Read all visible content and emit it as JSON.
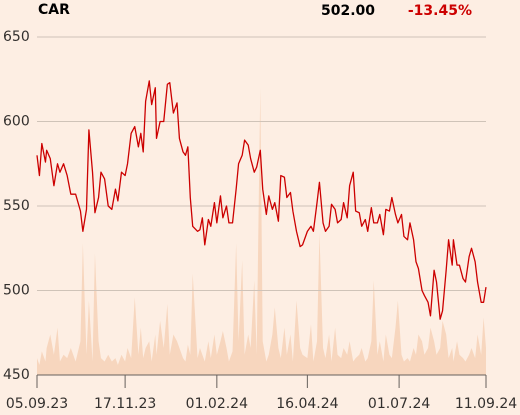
{
  "chart_data": {
    "type": "line",
    "header": {
      "symbol": "CAR",
      "price": "502.00",
      "change": "-13.45%"
    },
    "x": [
      "2023-09-05",
      "2023-09-07",
      "2023-09-09",
      "2023-09-12",
      "2023-09-13",
      "2023-09-16",
      "2023-09-19",
      "2023-09-22",
      "2023-09-24",
      "2023-09-27",
      "2023-09-30",
      "2023-10-03",
      "2023-10-07",
      "2023-10-11",
      "2023-10-13",
      "2023-10-16",
      "2023-10-18",
      "2023-10-21",
      "2023-10-23",
      "2023-10-26",
      "2023-10-28",
      "2023-10-31",
      "2023-11-03",
      "2023-11-06",
      "2023-11-09",
      "2023-11-11",
      "2023-11-14",
      "2023-11-17",
      "2023-11-19",
      "2023-11-22",
      "2023-11-25",
      "2023-11-28",
      "2023-11-30",
      "2023-12-02",
      "2023-12-04",
      "2023-12-07",
      "2023-12-09",
      "2023-12-12",
      "2023-12-13",
      "2023-12-16",
      "2023-12-19",
      "2023-12-22",
      "2023-12-24",
      "2023-12-27",
      "2023-12-30",
      "2024-01-01",
      "2024-01-04",
      "2024-01-06",
      "2024-01-08",
      "2024-01-10",
      "2024-01-12",
      "2024-01-16",
      "2024-01-18",
      "2024-01-20",
      "2024-01-22",
      "2024-01-25",
      "2024-01-27",
      "2024-01-30",
      "2024-02-01",
      "2024-02-04",
      "2024-02-06",
      "2024-02-09",
      "2024-02-11",
      "2024-02-14",
      "2024-02-17",
      "2024-02-19",
      "2024-02-22",
      "2024-02-24",
      "2024-02-27",
      "2024-02-29",
      "2024-03-03",
      "2024-03-05",
      "2024-03-08",
      "2024-03-10",
      "2024-03-13",
      "2024-03-15",
      "2024-03-18",
      "2024-03-20",
      "2024-03-23",
      "2024-03-25",
      "2024-03-28",
      "2024-03-30",
      "2024-04-02",
      "2024-04-04",
      "2024-04-07",
      "2024-04-10",
      "2024-04-12",
      "2024-04-16",
      "2024-04-19",
      "2024-04-21",
      "2024-04-24",
      "2024-04-26",
      "2024-04-29",
      "2024-05-01",
      "2024-05-04",
      "2024-05-06",
      "2024-05-09",
      "2024-05-11",
      "2024-05-14",
      "2024-05-16",
      "2024-05-19",
      "2024-05-21",
      "2024-05-24",
      "2024-05-26",
      "2024-05-29",
      "2024-05-31",
      "2024-06-03",
      "2024-06-05",
      "2024-06-08",
      "2024-06-10",
      "2024-06-13",
      "2024-06-15",
      "2024-06-18",
      "2024-06-20",
      "2024-06-23",
      "2024-06-25",
      "2024-06-28",
      "2024-06-30",
      "2024-07-03",
      "2024-07-05",
      "2024-07-08",
      "2024-07-10",
      "2024-07-13",
      "2024-07-15",
      "2024-07-17",
      "2024-07-20",
      "2024-07-22",
      "2024-07-25",
      "2024-07-27",
      "2024-07-30",
      "2024-08-01",
      "2024-08-04",
      "2024-08-06",
      "2024-08-09",
      "2024-08-11",
      "2024-08-14",
      "2024-08-15",
      "2024-08-18",
      "2024-08-20",
      "2024-08-23",
      "2024-08-25",
      "2024-08-28",
      "2024-08-30",
      "2024-09-02",
      "2024-09-04",
      "2024-09-07",
      "2024-09-09",
      "2024-09-11"
    ],
    "series": [
      {
        "color": "#cc0000",
        "values": [
          580,
          568,
          587,
          576,
          583,
          578,
          562,
          575,
          570,
          575,
          568,
          557,
          557,
          547,
          535,
          548,
          595,
          570,
          546,
          555,
          570,
          566,
          550,
          548,
          560,
          553,
          570,
          568,
          575,
          593,
          597,
          585,
          593,
          582,
          612,
          624,
          610,
          620,
          590,
          600,
          600,
          622,
          623,
          605,
          611,
          590,
          582,
          580,
          585,
          555,
          538,
          535,
          536,
          543,
          527,
          542,
          538,
          552,
          540,
          556,
          543,
          550,
          540,
          540,
          560,
          575,
          580,
          589,
          586,
          578,
          570,
          573,
          583,
          560,
          545,
          556,
          548,
          552,
          541,
          568,
          567,
          555,
          558,
          547,
          535,
          526,
          527,
          535,
          538,
          535,
          552,
          564,
          540,
          535,
          538,
          551,
          548,
          540,
          542,
          552,
          543,
          562,
          570,
          547,
          546,
          538,
          542,
          535,
          549,
          540,
          540,
          545,
          533,
          548,
          547,
          555,
          545,
          540,
          545,
          532,
          530,
          540,
          530,
          517,
          513,
          500,
          497,
          493,
          485,
          512,
          505,
          483,
          488,
          512,
          530,
          515,
          530,
          515,
          515,
          507,
          505,
          520,
          525,
          517,
          505,
          493,
          493,
          502
        ]
      },
      {
        "type": "area",
        "axis": "y2",
        "color": "#f7d6be",
        "values": [
          5,
          3,
          7,
          4,
          8,
          12,
          6,
          14,
          4,
          6,
          5,
          8,
          4,
          10,
          39,
          6,
          22,
          4,
          36,
          10,
          5,
          4,
          6,
          4,
          5,
          3,
          6,
          4,
          8,
          5,
          23,
          6,
          14,
          5,
          8,
          10,
          4,
          12,
          6,
          16,
          8,
          21,
          6,
          12,
          10,
          8,
          5,
          4,
          9,
          6,
          30,
          5,
          8,
          6,
          4,
          10,
          5,
          12,
          6,
          10,
          13,
          8,
          4,
          7,
          39,
          10,
          34,
          6,
          12,
          8,
          28,
          6,
          85,
          10,
          4,
          6,
          12,
          20,
          8,
          5,
          14,
          6,
          12,
          4,
          22,
          8,
          6,
          5,
          15,
          4,
          10,
          42,
          8,
          5,
          12,
          4,
          14,
          6,
          5,
          8,
          6,
          10,
          4,
          5,
          6,
          8,
          4,
          5,
          10,
          28,
          6,
          10,
          4,
          12,
          6,
          5,
          14,
          22,
          6,
          4,
          5,
          4,
          8,
          6,
          12,
          10,
          6,
          8,
          14,
          10,
          6,
          8,
          16,
          12,
          5,
          8,
          4,
          10,
          6,
          5,
          4,
          6,
          8,
          5,
          12,
          6,
          17,
          8
        ]
      }
    ],
    "xlim": [
      "2023-09-05",
      "2024-09-11"
    ],
    "xticks": [
      {
        "value": "2023-09-05",
        "label": "05.09.23"
      },
      {
        "value": "2023-11-17",
        "label": "17.11.23"
      },
      {
        "value": "2024-02-01",
        "label": "01.02.24"
      },
      {
        "value": "2024-04-16",
        "label": "16.04.24"
      },
      {
        "value": "2024-07-01",
        "label": "01.07.24"
      },
      {
        "value": "2024-09-11",
        "label": "11.09.24"
      }
    ],
    "ylim": [
      450,
      650
    ],
    "yticks": [
      450,
      500,
      550,
      600,
      650
    ],
    "y2lim": [
      0,
      100
    ],
    "grid": true
  }
}
